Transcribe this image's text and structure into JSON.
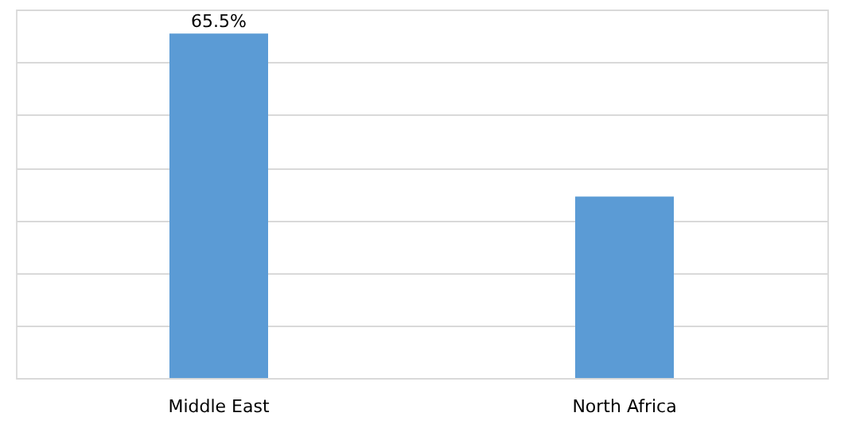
{
  "chart_data": {
    "type": "bar",
    "categories": [
      "Middle East",
      "North Africa"
    ],
    "series": [
      {
        "color": "#5b9bd5",
        "values": [
          65.5,
          34.5
        ],
        "value_labels": [
          "65.5%",
          null
        ]
      }
    ],
    "grid": "y",
    "tick_labels": "x"
  }
}
